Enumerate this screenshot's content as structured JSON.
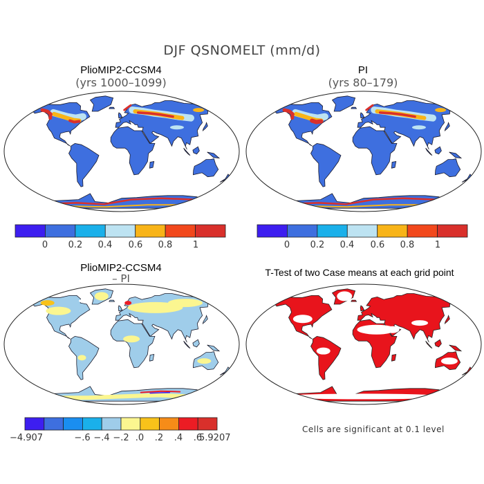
{
  "figure_title": "DJF QSNOMELT (mm/d)",
  "panels": {
    "top_left": {
      "title": "PlioMIP2-CCSM4",
      "subtitle": "(yrs 1000–1099)"
    },
    "top_right": {
      "title": "PI",
      "subtitle": "(yrs 80–179)"
    },
    "bottom_left": {
      "title": "PlioMIP2-CCSM4",
      "subtitle": "– PI"
    },
    "bottom_right": {
      "title": "T-Test of two Case means at each grid point",
      "note": "Cells are significant at 0.1 level"
    }
  },
  "colorbar_abs": {
    "colors": [
      "#3d1ef0",
      "#3e6fdf",
      "#1ab0ea",
      "#bde3f2",
      "#f8b418",
      "#f2481c",
      "#d9302b"
    ],
    "labels": [
      "0",
      "0.2",
      "0.4",
      "0.6",
      "0.8",
      "1"
    ]
  },
  "colorbar_diff": {
    "colors": [
      "#3d1ef0",
      "#3e6fdf",
      "#1a8ef0",
      "#1ab0ea",
      "#9fcdea",
      "#fbf690",
      "#f8c21a",
      "#f68c18",
      "#ec1c24",
      "#d9302b"
    ],
    "labels": [
      "−4.907",
      "−.6",
      "−.4",
      "−.2",
      ".0",
      ".2",
      ".4",
      ".6",
      "5.9207"
    ]
  },
  "colors": {
    "land_base": "#3e6fdf",
    "snow_high": "#d9302b",
    "snow_mid": "#f8b418",
    "snow_light": "#bde3f2",
    "diff_land": "#9fcdea",
    "diff_pos": "#fbf690",
    "significant": "#e8141c"
  }
}
